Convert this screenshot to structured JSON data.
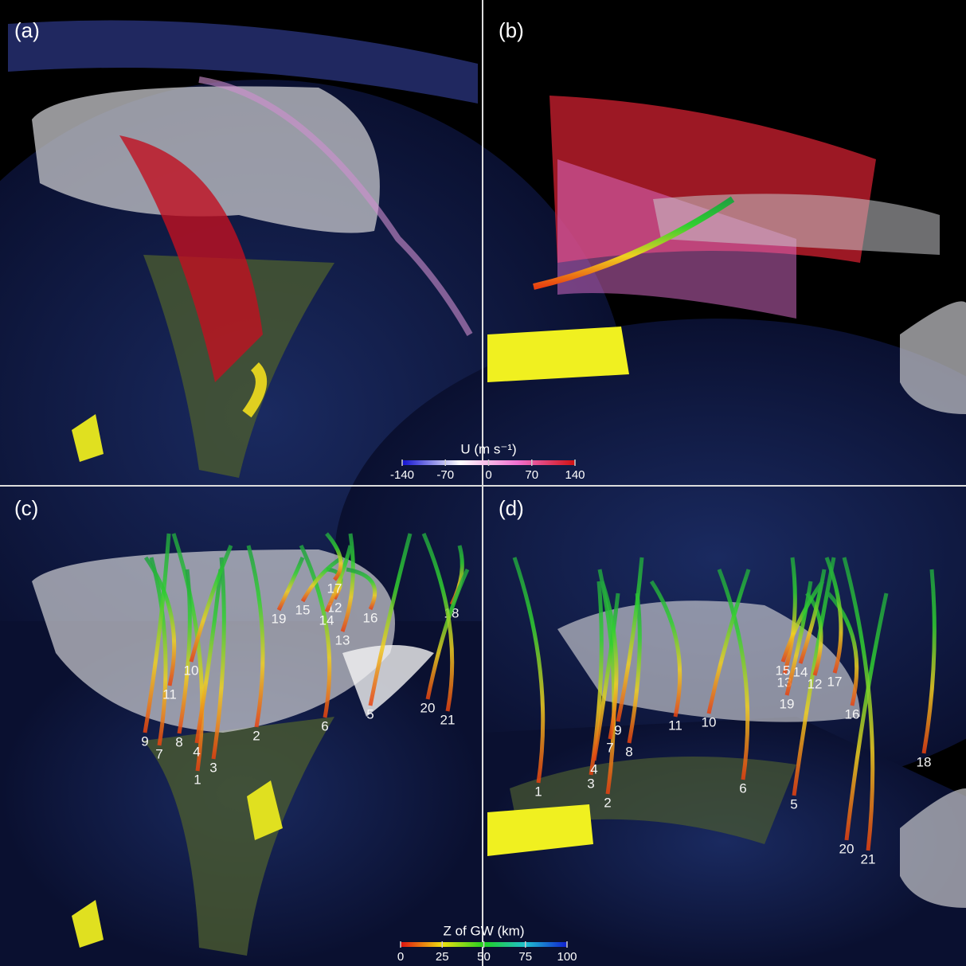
{
  "panels": [
    {
      "label": "(a)"
    },
    {
      "label": "(b)"
    },
    {
      "label": "(c)",
      "trajectory_labels": [
        "1",
        "2",
        "3",
        "4",
        "5",
        "6",
        "7",
        "8",
        "9",
        "10",
        "11",
        "12",
        "13",
        "14",
        "15",
        "16",
        "17",
        "18",
        "19",
        "20",
        "21"
      ]
    },
    {
      "label": "(d)",
      "trajectory_labels": [
        "1",
        "2",
        "3",
        "4",
        "5",
        "6",
        "7",
        "8",
        "9",
        "10",
        "11",
        "12",
        "13",
        "14",
        "15",
        "16",
        "17",
        "18",
        "19",
        "20",
        "21"
      ]
    }
  ],
  "colorbars": [
    {
      "title": "U (m s⁻¹)",
      "range": [
        -140,
        140
      ],
      "ticks": [
        -140,
        -70,
        0,
        70,
        140
      ],
      "colors": [
        "#1010d0",
        "#ffffff",
        "#f070d0",
        "#d01010"
      ]
    },
    {
      "title": "Z of GW (km)",
      "range": [
        0,
        100
      ],
      "ticks": [
        0,
        25,
        50,
        75,
        100
      ],
      "colors": [
        "#e01010",
        "#f0e010",
        "#20d020",
        "#20c0d0",
        "#1020d0"
      ]
    }
  ]
}
